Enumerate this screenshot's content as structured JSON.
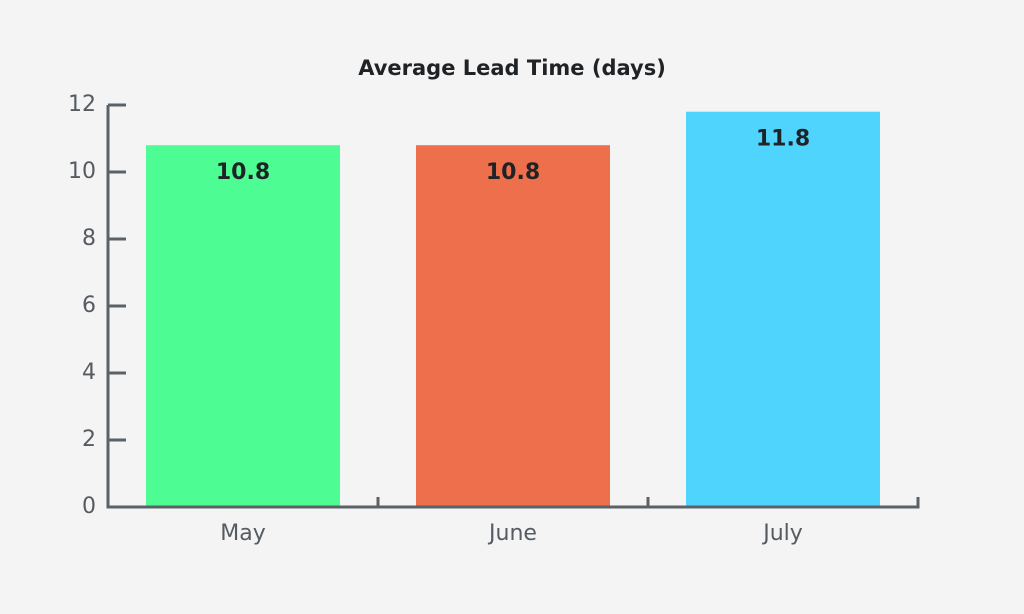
{
  "chart_data": {
    "type": "bar",
    "title": "Average Lead Time (days)",
    "categories": [
      "May",
      "June",
      "July"
    ],
    "values": [
      10.8,
      10.8,
      11.8
    ],
    "colors": [
      "#4dfd94",
      "#ee6f4b",
      "#4fd5fd"
    ],
    "ylim": [
      0,
      12
    ],
    "yticks": [
      0,
      2,
      4,
      6,
      8,
      10,
      12
    ],
    "grid": false
  }
}
